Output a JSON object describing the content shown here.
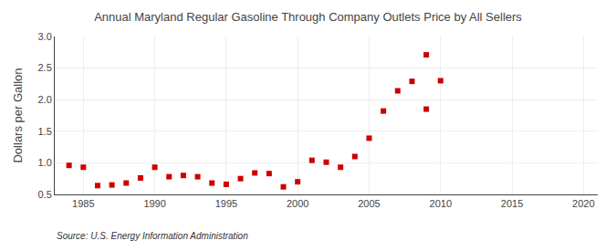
{
  "chart_data": {
    "type": "scatter",
    "title": "Annual Maryland Regular Gasoline Through Company Outlets Price by All Sellers",
    "ylabel": "Dollars per Gallon",
    "source": "Source: U.S. Energy Information Administration",
    "x": [
      1984,
      1985,
      1986,
      1987,
      1988,
      1989,
      1990,
      1991,
      1992,
      1993,
      1994,
      1995,
      1996,
      1997,
      1998,
      1999,
      2000,
      2001,
      2002,
      2003,
      2004,
      2005,
      2006,
      2007,
      2008,
      2009,
      2010,
      2009
    ],
    "values": [
      0.96,
      0.93,
      0.64,
      0.65,
      0.68,
      0.76,
      0.93,
      0.78,
      0.8,
      0.78,
      0.68,
      0.66,
      0.75,
      0.84,
      0.83,
      0.62,
      0.7,
      1.04,
      1.01,
      0.93,
      1.1,
      1.39,
      1.82,
      2.14,
      2.29,
      2.71,
      2.3,
      1.85
    ],
    "color": "#cc0000",
    "marker": "square",
    "xlim": [
      1983,
      2021
    ],
    "xticks": [
      1985,
      1990,
      1995,
      2000,
      2005,
      2010,
      2015,
      2020
    ],
    "ylim": [
      0.5,
      3.0
    ],
    "yticks": [
      0.5,
      {
        "value": 1.0,
        "label": "1.0"
      },
      1.5,
      {
        "value": 2.0,
        "label": "2.0"
      },
      2.5,
      {
        "value": 3.0,
        "label": "3.0"
      }
    ],
    "grid": true
  }
}
